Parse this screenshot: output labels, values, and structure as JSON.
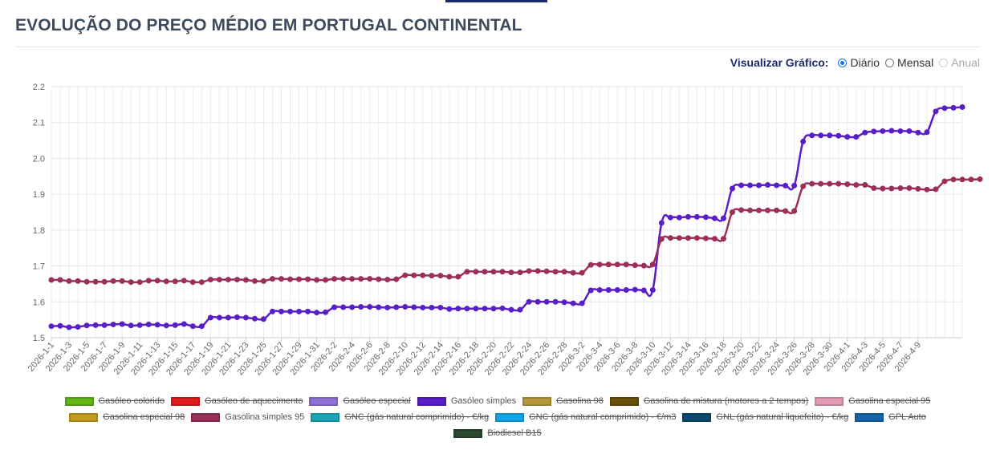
{
  "page": {
    "title": "EVOLUÇÃO DO PREÇO MÉDIO EM PORTUGAL CONTINENTAL",
    "view_label": "Visualizar Gráfico:",
    "view_options": [
      {
        "label": "Diário",
        "selected": true,
        "disabled": false
      },
      {
        "label": "Mensal",
        "selected": false,
        "disabled": false
      },
      {
        "label": "Anual",
        "selected": false,
        "disabled": true
      }
    ]
  },
  "chart_data": {
    "type": "line",
    "ylim": [
      1.5,
      2.2
    ],
    "yticks": [
      "1.5",
      "1.6",
      "1.7",
      "1.8",
      "1.9",
      "2.0",
      "2.1",
      "2.2"
    ],
    "grid": true,
    "x_tick_labels": [
      "2026-1-1",
      "2026-1-3",
      "2026-1-5",
      "2026-1-7",
      "2026-1-9",
      "2026-1-11",
      "2026-1-13",
      "2026-1-15",
      "2026-1-17",
      "2026-1-19",
      "2026-1-21",
      "2026-1-23",
      "2026-1-25",
      "2026-1-27",
      "2026-1-29",
      "2026-1-31",
      "2026-2-2",
      "2026-2-4",
      "2026-2-6",
      "2026-2-8",
      "2026-2-10",
      "2026-2-12",
      "2026-2-14",
      "2026-2-16",
      "2026-2-18",
      "2026-2-20",
      "2026-2-22",
      "2026-2-24",
      "2026-2-26",
      "2026-2-28",
      "2026-3-2",
      "2026-3-4",
      "2026-3-6",
      "2026-3-8",
      "2026-3-10",
      "2026-3-12",
      "2026-3-14",
      "2026-3-16",
      "2026-3-18",
      "2026-3-20",
      "2026-3-22",
      "2026-3-24",
      "2026-3-26",
      "2026-3-28",
      "2026-3-30",
      "2026-4-1",
      "2026-4-3",
      "2026-4-5",
      "2026-4-7",
      "2026-4-9"
    ],
    "series": [
      {
        "name": "Gasóleo simples",
        "color": "#5a1ec8",
        "values": [
          1.532,
          1.533,
          1.529,
          1.53,
          1.534,
          1.535,
          1.535,
          1.537,
          1.538,
          1.534,
          1.535,
          1.537,
          1.536,
          1.534,
          1.535,
          1.538,
          1.532,
          1.532,
          1.556,
          1.556,
          1.556,
          1.557,
          1.556,
          1.553,
          1.552,
          1.573,
          1.573,
          1.573,
          1.573,
          1.573,
          1.57,
          1.571,
          1.585,
          1.585,
          1.585,
          1.586,
          1.586,
          1.585,
          1.584,
          1.585,
          1.586,
          1.585,
          1.584,
          1.584,
          1.584,
          1.58,
          1.581,
          1.581,
          1.581,
          1.581,
          1.581,
          1.582,
          1.578,
          1.578,
          1.6,
          1.6,
          1.6,
          1.6,
          1.599,
          1.596,
          1.596,
          1.632,
          1.633,
          1.633,
          1.633,
          1.633,
          1.634,
          1.632,
          1.633,
          1.82,
          1.835,
          1.835,
          1.837,
          1.837,
          1.836,
          1.833,
          1.833,
          1.916,
          1.925,
          1.925,
          1.925,
          1.926,
          1.925,
          1.924,
          1.924,
          2.047,
          2.064,
          2.064,
          2.064,
          2.063,
          2.06,
          2.06,
          2.072,
          2.075,
          2.076,
          2.077,
          2.076,
          2.076,
          2.072,
          2.073,
          2.131,
          2.14,
          2.141,
          2.143
        ]
      },
      {
        "name": "Gasolina simples 95",
        "color": "#9c2f5a",
        "values": [
          1.661,
          1.661,
          1.658,
          1.658,
          1.656,
          1.656,
          1.656,
          1.658,
          1.658,
          1.655,
          1.655,
          1.659,
          1.659,
          1.657,
          1.657,
          1.659,
          1.655,
          1.655,
          1.662,
          1.662,
          1.662,
          1.662,
          1.661,
          1.658,
          1.658,
          1.664,
          1.664,
          1.663,
          1.663,
          1.663,
          1.661,
          1.661,
          1.664,
          1.664,
          1.664,
          1.664,
          1.664,
          1.663,
          1.662,
          1.663,
          1.674,
          1.674,
          1.674,
          1.673,
          1.673,
          1.67,
          1.67,
          1.684,
          1.684,
          1.684,
          1.684,
          1.684,
          1.682,
          1.682,
          1.686,
          1.686,
          1.685,
          1.684,
          1.684,
          1.681,
          1.681,
          1.703,
          1.704,
          1.704,
          1.704,
          1.704,
          1.702,
          1.701,
          1.704,
          1.775,
          1.778,
          1.778,
          1.778,
          1.778,
          1.777,
          1.776,
          1.776,
          1.85,
          1.856,
          1.855,
          1.855,
          1.855,
          1.855,
          1.853,
          1.853,
          1.922,
          1.929,
          1.929,
          1.929,
          1.929,
          1.928,
          1.926,
          1.926,
          1.917,
          1.916,
          1.916,
          1.917,
          1.917,
          1.915,
          1.913,
          1.914,
          1.936,
          1.941,
          1.941,
          1.941,
          1.942
        ]
      }
    ],
    "legend": [
      {
        "label": "Gasóleo colorido",
        "color": "#5fb514",
        "active": false
      },
      {
        "label": "Gasóleo de aquecimento",
        "color": "#e31a1c",
        "active": false
      },
      {
        "label": "Gasóleo especial",
        "color": "#8e6fd6",
        "active": false
      },
      {
        "label": "Gasóleo simples",
        "color": "#5a1ec8",
        "active": true
      },
      {
        "label": "Gasolina 98",
        "color": "#b5963a",
        "active": false
      },
      {
        "label": "Gasolina de mistura (motores a 2 tempos)",
        "color": "#6b4f0a",
        "active": false
      },
      {
        "label": "Gasolina especial 95",
        "color": "#e29bb0",
        "active": false
      },
      {
        "label": "Gasolina especial 98",
        "color": "#c49b1a",
        "active": false
      },
      {
        "label": "Gasolina simples 95",
        "color": "#9c2f5a",
        "active": true
      },
      {
        "label": "GNC (gás natural comprimido) - €/kg",
        "color": "#1aa6b7",
        "active": false
      },
      {
        "label": "GNC (gás natural comprimido) - €/m3",
        "color": "#12a6e8",
        "active": false
      },
      {
        "label": "GNL (gás natural liquefeito) - €/kg",
        "color": "#0b4a6e",
        "active": false
      },
      {
        "label": "GPL Auto",
        "color": "#1565a8",
        "active": false
      },
      {
        "label": "Biodiesel B15",
        "color": "#2a4a2f",
        "active": false
      }
    ]
  }
}
